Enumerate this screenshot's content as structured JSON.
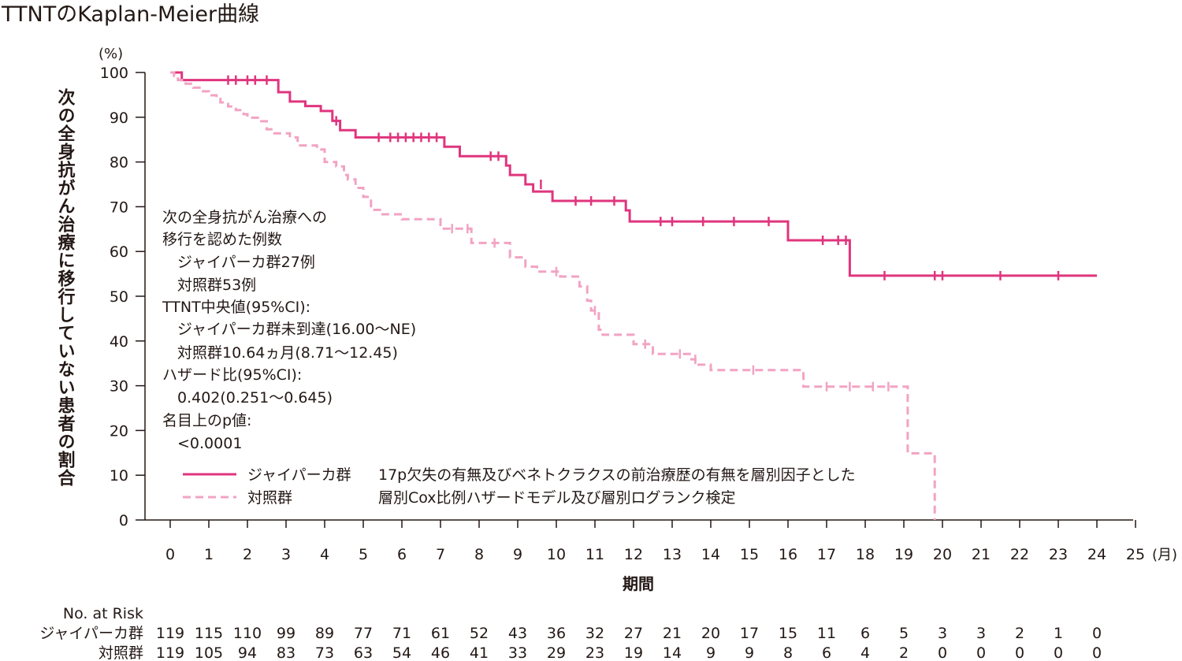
{
  "colors": {
    "treatment": "#e0357e",
    "control": "#f2a3c3",
    "axis": "#231815"
  },
  "chart_data": {
    "type": "line",
    "title": "TTNTのKaplan-Meier曲線",
    "xlabel": "期間",
    "x_unit": "(月)",
    "ylabel": "次の全身抗がん治療に移行していない患者の割合",
    "y_unit": "(%)",
    "xlim": [
      0,
      25
    ],
    "ylim": [
      0,
      100
    ],
    "x_ticks": [
      "0",
      "1",
      "2",
      "3",
      "4",
      "5",
      "6",
      "7",
      "8",
      "9",
      "10",
      "11",
      "12",
      "13",
      "14",
      "15",
      "16",
      "17",
      "18",
      "19",
      "20",
      "21",
      "22",
      "23",
      "24",
      "25"
    ],
    "y_ticks": [
      "0",
      "10",
      "20",
      "30",
      "40",
      "50",
      "60",
      "70",
      "80",
      "90",
      "100"
    ],
    "series": [
      {
        "name": "ジャイパーカ群",
        "style": "solid",
        "steps": [
          [
            0,
            100
          ],
          [
            0.3,
            98.3
          ],
          [
            2.7,
            98.3
          ],
          [
            2.8,
            95.6
          ],
          [
            3.1,
            93.5
          ],
          [
            3.5,
            92.5
          ],
          [
            3.9,
            91.4
          ],
          [
            4.2,
            89.2
          ],
          [
            4.4,
            87.1
          ],
          [
            4.8,
            85.5
          ],
          [
            7.1,
            83.4
          ],
          [
            7.5,
            81.3
          ],
          [
            8.7,
            79.2
          ],
          [
            8.8,
            77.1
          ],
          [
            9.2,
            75.0
          ],
          [
            9.4,
            73.4
          ],
          [
            9.9,
            71.3
          ],
          [
            11.8,
            69.2
          ],
          [
            11.9,
            66.7
          ],
          [
            16.0,
            62.5
          ],
          [
            17.6,
            54.6
          ],
          [
            24.0,
            54.6
          ]
        ],
        "censors": [
          [
            1.5,
            98.3
          ],
          [
            1.7,
            98.3
          ],
          [
            2.0,
            98.3
          ],
          [
            2.2,
            98.3
          ],
          [
            2.5,
            98.3
          ],
          [
            4.3,
            89.2
          ],
          [
            5.4,
            85.5
          ],
          [
            5.7,
            85.5
          ],
          [
            5.9,
            85.5
          ],
          [
            6.1,
            85.5
          ],
          [
            6.3,
            85.5
          ],
          [
            6.5,
            85.5
          ],
          [
            6.7,
            85.5
          ],
          [
            6.9,
            85.5
          ],
          [
            8.3,
            81.3
          ],
          [
            8.5,
            81.3
          ],
          [
            9.6,
            75.0
          ],
          [
            10.5,
            71.3
          ],
          [
            10.9,
            71.3
          ],
          [
            11.5,
            71.3
          ],
          [
            12.7,
            66.7
          ],
          [
            13.0,
            66.7
          ],
          [
            13.8,
            66.7
          ],
          [
            14.6,
            66.7
          ],
          [
            15.5,
            66.7
          ],
          [
            16.9,
            62.5
          ],
          [
            17.3,
            62.5
          ],
          [
            17.5,
            62.5
          ],
          [
            18.5,
            54.6
          ],
          [
            19.8,
            54.6
          ],
          [
            20.0,
            54.6
          ],
          [
            21.5,
            54.6
          ],
          [
            23.0,
            54.6
          ]
        ]
      },
      {
        "name": "対照群",
        "style": "dashed",
        "steps": [
          [
            0,
            100
          ],
          [
            0.1,
            99.2
          ],
          [
            0.2,
            98.3
          ],
          [
            0.4,
            97.5
          ],
          [
            0.6,
            96.6
          ],
          [
            0.8,
            95.8
          ],
          [
            1.0,
            94.9
          ],
          [
            1.2,
            94.1
          ],
          [
            1.3,
            93.3
          ],
          [
            1.5,
            92.4
          ],
          [
            1.7,
            91.6
          ],
          [
            1.9,
            90.7
          ],
          [
            2.0,
            89.9
          ],
          [
            2.3,
            89.1
          ],
          [
            2.5,
            87.3
          ],
          [
            2.7,
            86.4
          ],
          [
            3.1,
            85.5
          ],
          [
            3.3,
            83.7
          ],
          [
            3.8,
            82.8
          ],
          [
            4.0,
            80.0
          ],
          [
            4.3,
            79.0
          ],
          [
            4.5,
            77.1
          ],
          [
            4.6,
            76.1
          ],
          [
            4.8,
            74.2
          ],
          [
            5.0,
            72.2
          ],
          [
            5.2,
            69.3
          ],
          [
            5.5,
            68.3
          ],
          [
            6.0,
            67.2
          ],
          [
            7.0,
            65.1
          ],
          [
            7.8,
            61.9
          ],
          [
            8.8,
            58.7
          ],
          [
            9.2,
            56.6
          ],
          [
            9.5,
            55.5
          ],
          [
            10.1,
            54.4
          ],
          [
            10.6,
            52.2
          ],
          [
            10.8,
            49.0
          ],
          [
            10.9,
            46.8
          ],
          [
            11.1,
            42.5
          ],
          [
            11.2,
            41.4
          ],
          [
            12.0,
            39.3
          ],
          [
            12.5,
            37.1
          ],
          [
            13.5,
            35.9
          ],
          [
            13.6,
            34.7
          ],
          [
            14.0,
            33.5
          ],
          [
            16.4,
            29.8
          ],
          [
            19.1,
            14.9
          ],
          [
            19.8,
            0
          ],
          [
            19.8,
            0
          ]
        ],
        "censors": [
          [
            7.3,
            65.1
          ],
          [
            7.7,
            65.1
          ],
          [
            8.4,
            61.9
          ],
          [
            10.0,
            55.5
          ],
          [
            11.0,
            46.8
          ],
          [
            12.3,
            39.3
          ],
          [
            13.2,
            37.1
          ],
          [
            13.6,
            35.9
          ],
          [
            15.1,
            33.5
          ],
          [
            17.0,
            29.8
          ],
          [
            17.6,
            29.8
          ],
          [
            18.2,
            29.8
          ],
          [
            18.6,
            29.8
          ]
        ]
      }
    ],
    "annotations": [
      "次の全身抗がん治療への",
      "移行を認めた例数",
      "　ジャイパーカ群27例",
      "　対照群53例",
      "TTNT中央値(95%CI):",
      "　ジャイパーカ群未到達(16.00～NE)",
      "　対照群10.64ヵ月(8.71～12.45)",
      "ハザード比(95%CI):",
      "　0.402(0.251～0.645)",
      "名目上のp値:",
      "　<0.0001"
    ],
    "legend_note": [
      "17p欠失の有無及びベネトクラクスの前治療歴の有無を層別因子とした",
      "層別Cox比例ハザードモデル及び層別ログランク検定"
    ],
    "risk_table": {
      "header": "No. at Risk",
      "rows": [
        {
          "label": "ジャイパーカ群",
          "values": [
            "119",
            "115",
            "110",
            "99",
            "89",
            "77",
            "71",
            "61",
            "52",
            "43",
            "36",
            "32",
            "27",
            "21",
            "20",
            "17",
            "15",
            "11",
            "6",
            "5",
            "3",
            "3",
            "2",
            "1",
            "0"
          ]
        },
        {
          "label": "対照群",
          "values": [
            "119",
            "105",
            "94",
            "83",
            "73",
            "63",
            "54",
            "46",
            "41",
            "33",
            "29",
            "23",
            "19",
            "14",
            "9",
            "9",
            "8",
            "6",
            "4",
            "2",
            "0",
            "0",
            "0",
            "0",
            "0"
          ]
        }
      ]
    }
  }
}
